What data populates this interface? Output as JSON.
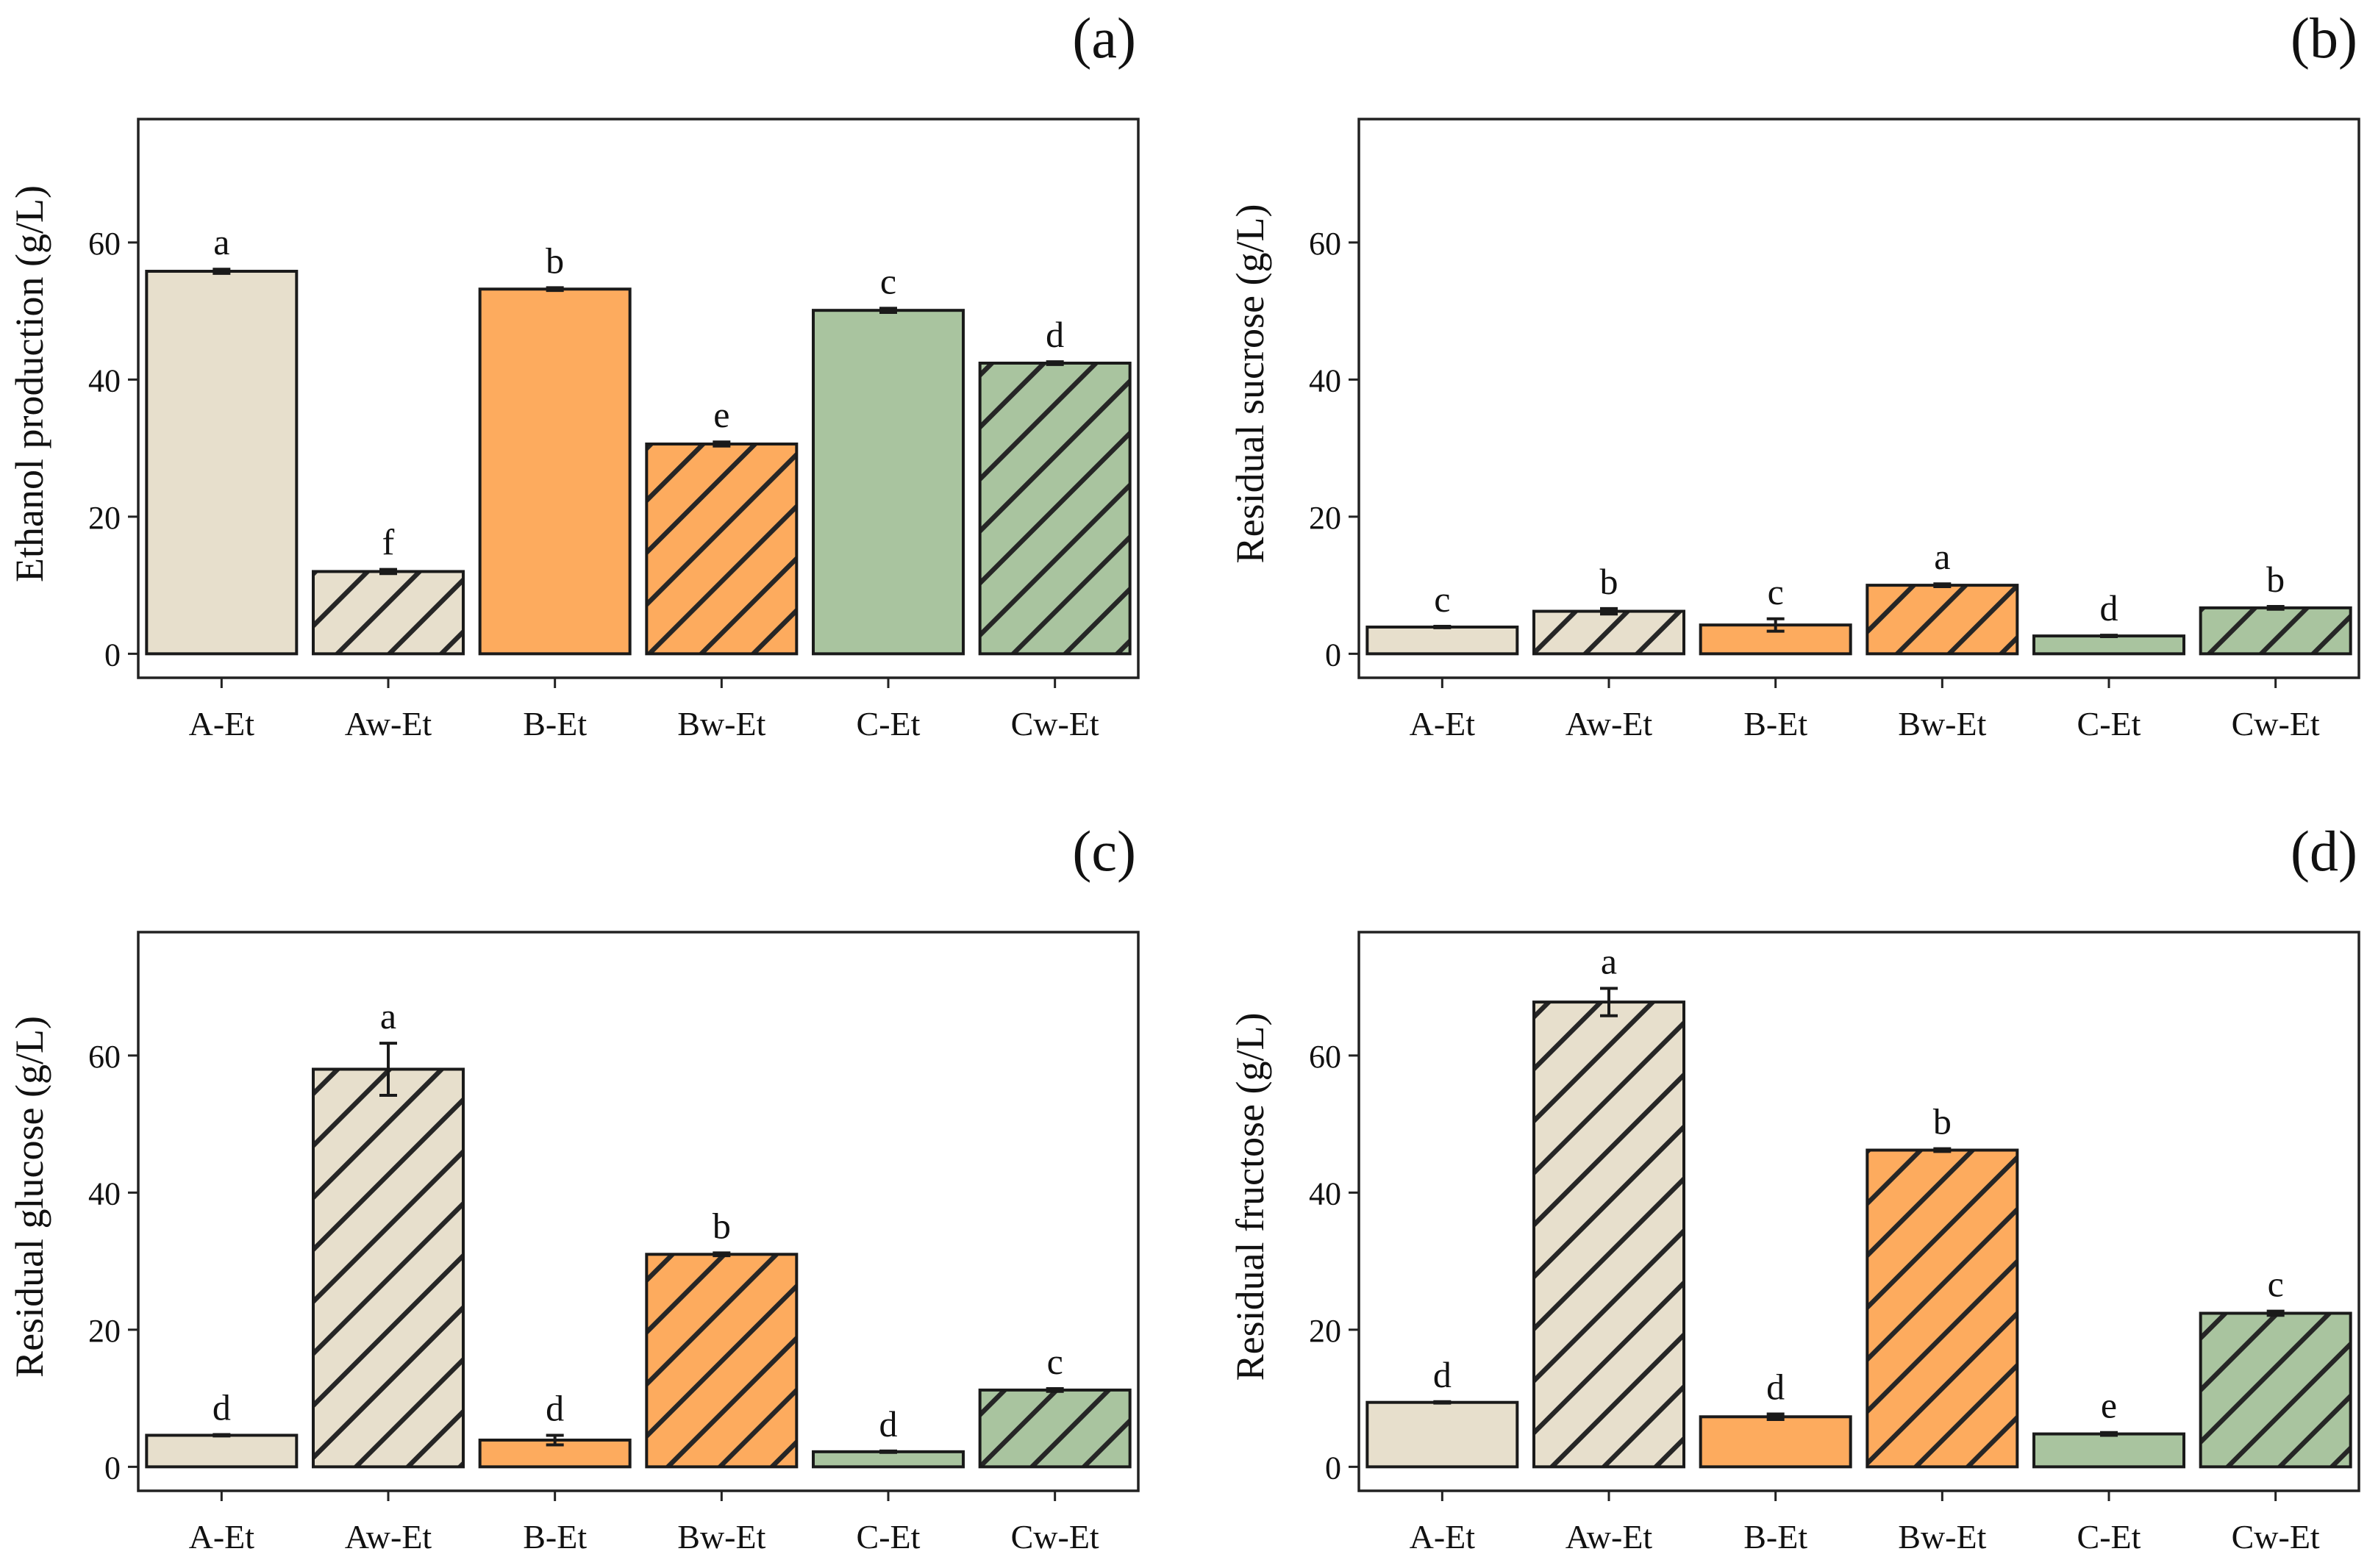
{
  "chart_data": [
    {
      "panel": "(a)",
      "type": "bar",
      "ylabel": "Ethanol production (g/L)",
      "categories": [
        "A-Et",
        "Aw-Et",
        "B-Et",
        "Bw-Et",
        "C-Et",
        "Cw-Et"
      ],
      "values": [
        55.8,
        12.0,
        53.2,
        30.6,
        50.1,
        42.4
      ],
      "errors": [
        0.3,
        0.3,
        0.2,
        0.3,
        0.3,
        0.2
      ],
      "letters": [
        "a",
        "f",
        "b",
        "e",
        "c",
        "d"
      ],
      "yticks": [
        0,
        20,
        40,
        60
      ],
      "ylim": [
        -3.5,
        78
      ]
    },
    {
      "panel": "(b)",
      "type": "bar",
      "ylabel": "Residual sucrose (g/L)",
      "categories": [
        "A-Et",
        "Aw-Et",
        "B-Et",
        "Bw-Et",
        "C-Et",
        "Cw-Et"
      ],
      "values": [
        3.9,
        6.2,
        4.2,
        10.0,
        2.6,
        6.7
      ],
      "errors": [
        0.1,
        0.4,
        0.9,
        0.2,
        0.1,
        0.2
      ],
      "letters": [
        "c",
        "b",
        "c",
        "a",
        "d",
        "b"
      ],
      "yticks": [
        0,
        20,
        40,
        60
      ],
      "ylim": [
        -3.5,
        78
      ]
    },
    {
      "panel": "(c)",
      "type": "bar",
      "ylabel": "Residual glucose (g/L)",
      "categories": [
        "A-Et",
        "Aw-Et",
        "B-Et",
        "Bw-Et",
        "C-Et",
        "Cw-Et"
      ],
      "values": [
        4.6,
        58.0,
        3.9,
        31.0,
        2.2,
        11.2
      ],
      "errors": [
        0.1,
        3.8,
        0.7,
        0.2,
        0.1,
        0.2
      ],
      "letters": [
        "d",
        "a",
        "d",
        "b",
        "d",
        "c"
      ],
      "yticks": [
        0,
        20,
        40,
        60
      ],
      "ylim": [
        -3.5,
        78
      ]
    },
    {
      "panel": "(d)",
      "type": "bar",
      "ylabel": "Residual fructose (g/L)",
      "categories": [
        "A-Et",
        "Aw-Et",
        "B-Et",
        "Bw-Et",
        "C-Et",
        "Cw-Et"
      ],
      "values": [
        9.4,
        67.8,
        7.3,
        46.2,
        4.8,
        22.4
      ],
      "errors": [
        0.1,
        2.0,
        0.4,
        0.2,
        0.2,
        0.3
      ],
      "letters": [
        "d",
        "a",
        "d",
        "b",
        "e",
        "c"
      ],
      "yticks": [
        0,
        20,
        40,
        60
      ],
      "ylim": [
        -3.5,
        78
      ]
    }
  ],
  "style": {
    "colors": [
      "#e7dfcc",
      "#e7dfcc",
      "#fdab5e",
      "#fdab5e",
      "#a9c49f",
      "#a9c49f"
    ],
    "hatched": [
      false,
      true,
      false,
      true,
      false,
      true
    ]
  }
}
